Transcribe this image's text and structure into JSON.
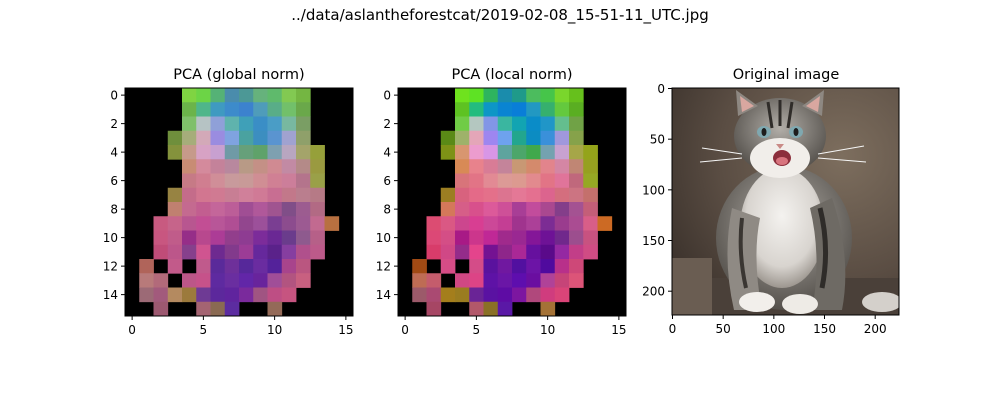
{
  "suptitle": "../data/aslantheforestcat/2019-02-08_15-51-11_UTC.jpg",
  "chart_data": [
    {
      "type": "heatmap",
      "title": "PCA (global norm)",
      "xlim": [
        -0.5,
        15.5
      ],
      "ylim": [
        15.5,
        -0.5
      ],
      "x_ticks": [
        0,
        5,
        10,
        15
      ],
      "y_ticks": [
        0,
        2,
        4,
        6,
        8,
        10,
        12,
        14
      ],
      "grid_size": [
        16,
        16
      ],
      "background_color": "#000000",
      "rows": [
        [
          "#000000",
          "#000000",
          "#000000",
          "#000000",
          "#7fd442",
          "#6cd446",
          "#55b276",
          "#4a8cac",
          "#4c9896",
          "#66b27c",
          "#5fba6c",
          "#82c952",
          "#74b642",
          "#000000",
          "#000000",
          "#000000"
        ],
        [
          "#000000",
          "#000000",
          "#000000",
          "#000000",
          "#6bb44a",
          "#4fb68a",
          "#3f9ac1",
          "#3d8bcb",
          "#3c82ce",
          "#4f9cba",
          "#59ad88",
          "#72c06a",
          "#6aa84a",
          "#000000",
          "#000000",
          "#000000"
        ],
        [
          "#000000",
          "#000000",
          "#000000",
          "#000000",
          "#7fc06a",
          "#b6c3c4",
          "#8fa0d8",
          "#5fb3ad",
          "#3fa0b8",
          "#3a8ec6",
          "#4a9dc6",
          "#78b8a0",
          "#7a9e64",
          "#000000",
          "#000000",
          "#000000"
        ],
        [
          "#000000",
          "#000000",
          "#000000",
          "#6f8f3c",
          "#a6ad7a",
          "#d3a9b8",
          "#9a8ce0",
          "#7fa3e0",
          "#4aa2a0",
          "#3c8ec0",
          "#5a94d0",
          "#a0a2d0",
          "#8fa06a",
          "#000000",
          "#000000",
          "#000000"
        ],
        [
          "#000000",
          "#000000",
          "#000000",
          "#84923c",
          "#c69a8a",
          "#d7a2c4",
          "#c8a0d0",
          "#6f9aa6",
          "#66a07a",
          "#5fa26a",
          "#7ea0b0",
          "#b8a6c0",
          "#a4a46a",
          "#96a03a",
          "#000000",
          "#000000"
        ],
        [
          "#000000",
          "#000000",
          "#000000",
          "#000000",
          "#c88c74",
          "#d48a9c",
          "#c4829a",
          "#b8889e",
          "#b89a86",
          "#c49086",
          "#d08a92",
          "#c28aa4",
          "#b48a88",
          "#9a9a40",
          "#000000",
          "#000000"
        ],
        [
          "#000000",
          "#000000",
          "#000000",
          "#000000",
          "#c67a86",
          "#d07e90",
          "#d08e98",
          "#c89a9c",
          "#c89a98",
          "#d08e94",
          "#d08094",
          "#cc7e9a",
          "#b4748c",
          "#9aa048",
          "#000000",
          "#000000"
        ],
        [
          "#000000",
          "#000000",
          "#000000",
          "#978342",
          "#c46c8a",
          "#d27690",
          "#d07a92",
          "#c87e94",
          "#d0809a",
          "#d07a96",
          "#c86e92",
          "#c2788a",
          "#ba7e8e",
          "#b67a86",
          "#000000",
          "#000000"
        ],
        [
          "#000000",
          "#000000",
          "#000000",
          "#c08070",
          "#c46a90",
          "#c25e90",
          "#c4669a",
          "#bc5e98",
          "#a04e94",
          "#b0589a",
          "#a05490",
          "#804e88",
          "#9c5c90",
          "#b26a84",
          "#000000",
          "#000000"
        ],
        [
          "#000000",
          "#000000",
          "#c85a80",
          "#c6648a",
          "#b85690",
          "#c24e94",
          "#b85698",
          "#b04e94",
          "#92468e",
          "#9c509a",
          "#7a3e92",
          "#8c4c8e",
          "#9c5a92",
          "#c26a90",
          "#b87040",
          "#000000"
        ],
        [
          "#000000",
          "#000000",
          "#c85680",
          "#c05c8a",
          "#962e88",
          "#b8488e",
          "#ac3c96",
          "#923e8c",
          "#8e3c92",
          "#7c2c9a",
          "#6a2894",
          "#6a3c8c",
          "#8e5a8e",
          "#b66088",
          "#000000",
          "#000000"
        ],
        [
          "#000000",
          "#000000",
          "#c04c78",
          "#bc568a",
          "#86408c",
          "#d05490",
          "#6e2a90",
          "#823a8c",
          "#9c3c96",
          "#66289c",
          "#5a228a",
          "#863ea0",
          "#b0508c",
          "#bc5a8a",
          "#000000",
          "#000000"
        ],
        [
          "#000000",
          "#b0645a",
          "#000000",
          "#c25a8a",
          "#000000",
          "#c05a8c",
          "#5a2a9a",
          "#6e309a",
          "#56289a",
          "#6a2ca0",
          "#54229a",
          "#a8448c",
          "#ba5680",
          "#000000",
          "#000000",
          "#000000"
        ],
        [
          "#000000",
          "#b87a7a",
          "#b26a7a",
          "#000000",
          "#bc5688",
          "#c6528a",
          "#5e2aa0",
          "#6a2ea0",
          "#6226a8",
          "#68249c",
          "#a04e98",
          "#b25480",
          "#c86080",
          "#000000",
          "#000000",
          "#000000"
        ],
        [
          "#000000",
          "#9c6a76",
          "#a25a7c",
          "#b48a60",
          "#9c7a3c",
          "#6e3a94",
          "#5c289c",
          "#60249e",
          "#7a2a9c",
          "#a05482",
          "#be4e84",
          "#c65480",
          "#000000",
          "#000000",
          "#000000",
          "#000000"
        ],
        [
          "#000000",
          "#000000",
          "#9c5870",
          "#000000",
          "#000000",
          "#a46472",
          "#8a6a52",
          "#5c2ca0",
          "#000000",
          "#000000",
          "#946a58",
          "#000000",
          "#000000",
          "#000000",
          "#000000",
          "#000000"
        ]
      ]
    },
    {
      "type": "heatmap",
      "title": "PCA (local norm)",
      "xlim": [
        -0.5,
        15.5
      ],
      "ylim": [
        15.5,
        -0.5
      ],
      "x_ticks": [
        0,
        5,
        10,
        15
      ],
      "y_ticks": [
        0,
        2,
        4,
        6,
        8,
        10,
        12,
        14
      ],
      "grid_size": [
        16,
        16
      ],
      "background_color": "#000000",
      "rows": [
        [
          "#000000",
          "#000000",
          "#000000",
          "#000000",
          "#6fe21e",
          "#5ee224",
          "#2eb45e",
          "#1a8cac",
          "#1f9a8a",
          "#4cbc5e",
          "#46c54a",
          "#7ad62c",
          "#66c01c",
          "#000000",
          "#000000",
          "#000000"
        ],
        [
          "#000000",
          "#000000",
          "#000000",
          "#000000",
          "#5ec222",
          "#23bc7e",
          "#0d96c6",
          "#0a84d2",
          "#097ed8",
          "#2298c2",
          "#36b06e",
          "#64c93e",
          "#5aae22",
          "#000000",
          "#000000",
          "#000000"
        ],
        [
          "#000000",
          "#000000",
          "#000000",
          "#000000",
          "#70cc46",
          "#b4c7c0",
          "#8296e6",
          "#3ab6a0",
          "#12a4b2",
          "#0a8cc8",
          "#2096c8",
          "#64be8e",
          "#70a246",
          "#000000",
          "#000000",
          "#000000"
        ],
        [
          "#000000",
          "#000000",
          "#000000",
          "#5a8a16",
          "#9eb26a",
          "#e4a6b8",
          "#9e86f0",
          "#6ea2ee",
          "#22a68e",
          "#0c8cc2",
          "#3a90da",
          "#a098dc",
          "#86a24a",
          "#000000",
          "#000000",
          "#000000"
        ],
        [
          "#000000",
          "#000000",
          "#000000",
          "#7e9216",
          "#d89670",
          "#ec9cce",
          "#d896e6",
          "#5ea49e",
          "#4ca66a",
          "#40a84c",
          "#74a2b0",
          "#c8a2d0",
          "#a6a648",
          "#94a41a",
          "#000000",
          "#000000"
        ],
        [
          "#000000",
          "#000000",
          "#000000",
          "#000000",
          "#d88a56",
          "#e8828c",
          "#d87c96",
          "#c4849a",
          "#c89874",
          "#d48a6c",
          "#e2848c",
          "#d486a4",
          "#c08674",
          "#96a020",
          "#000000",
          "#000000"
        ],
        [
          "#000000",
          "#000000",
          "#000000",
          "#000000",
          "#d8747a",
          "#e27486",
          "#e28a94",
          "#dc9a96",
          "#dc9a90",
          "#e28a8e",
          "#e27486",
          "#e0749a",
          "#c0687c",
          "#96a824",
          "#000000",
          "#000000"
        ],
        [
          "#000000",
          "#000000",
          "#000000",
          "#9c7e22",
          "#d8627e",
          "#e46a88",
          "#e4708a",
          "#dc7490",
          "#e47896",
          "#e47090",
          "#dc648e",
          "#d46e7e",
          "#cc7482",
          "#c4706c",
          "#000000",
          "#000000"
        ],
        [
          "#000000",
          "#000000",
          "#000000",
          "#d4785a",
          "#d65e88",
          "#d8508c",
          "#dc5a9a",
          "#ce5098",
          "#a83e96",
          "#c24c9c",
          "#aa4890",
          "#843e8a",
          "#a45292",
          "#c45e78",
          "#000000",
          "#000000"
        ],
        [
          "#000000",
          "#000000",
          "#dc4c72",
          "#da5884",
          "#cc468e",
          "#d83e92",
          "#cc4898",
          "#c43e94",
          "#a0348e",
          "#ac4098",
          "#7c2c94",
          "#9a3c8e",
          "#aa4c92",
          "#d85e88",
          "#cc6a24",
          "#000000"
        ],
        [
          "#000000",
          "#000000",
          "#dc4876",
          "#d44e86",
          "#a81a86",
          "#cc368c",
          "#c02896",
          "#a02a8c",
          "#9a2892",
          "#841698",
          "#6e1296",
          "#70288c",
          "#9c4e8e",
          "#c85280",
          "#000000",
          "#000000"
        ],
        [
          "#000000",
          "#000000",
          "#d83c6a",
          "#d04886",
          "#942c8a",
          "#e4448c",
          "#741292",
          "#8e268a",
          "#aa2896",
          "#66109e",
          "#5a0a8a",
          "#9428a2",
          "#c23e88",
          "#d04c84",
          "#000000",
          "#000000"
        ],
        [
          "#000000",
          "#a04a14",
          "#000000",
          "#d64c86",
          "#000000",
          "#d44c88",
          "#5a129e",
          "#7018a0",
          "#5210a0",
          "#6c14a6",
          "#500a9e",
          "#b8308a",
          "#ce4878",
          "#000000",
          "#000000",
          "#000000"
        ],
        [
          "#000000",
          "#be6c54",
          "#c45c6c",
          "#000000",
          "#d04884",
          "#dc4486",
          "#5e12a6",
          "#6a16a6",
          "#5e0eae",
          "#6a0ea0",
          "#b04298",
          "#c64478",
          "#dc5478",
          "#000000",
          "#000000",
          "#000000"
        ],
        [
          "#000000",
          "#9c5a6a",
          "#aa4a72",
          "#a47e1c",
          "#9a7c20",
          "#6a2496",
          "#5a12a2",
          "#5e0ca4",
          "#7c16a0",
          "#b0487c",
          "#d03c7e",
          "#da4478",
          "#000000",
          "#000000",
          "#000000",
          "#000000"
        ],
        [
          "#000000",
          "#000000",
          "#a64664",
          "#000000",
          "#000000",
          "#b2586a",
          "#8a7026",
          "#5a18a6",
          "#000000",
          "#000000",
          "#a47236",
          "#000000",
          "#000000",
          "#000000",
          "#000000",
          "#000000"
        ]
      ]
    },
    {
      "type": "image",
      "title": "Original image",
      "xlim": [
        -0.5,
        223.5
      ],
      "ylim": [
        223.5,
        -0.5
      ],
      "x_ticks": [
        0,
        50,
        100,
        150,
        200
      ],
      "y_ticks": [
        0,
        50,
        100,
        150,
        200
      ]
    }
  ]
}
